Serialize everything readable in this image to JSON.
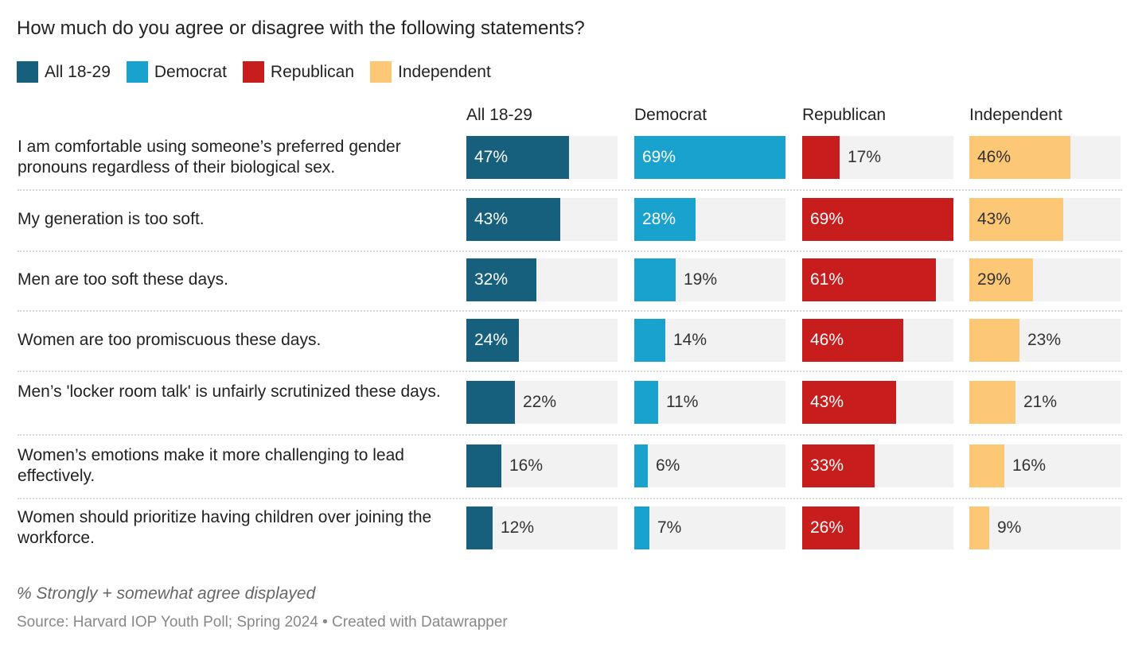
{
  "chart_data": {
    "type": "bar",
    "title": "How much do you agree or disagree with the following statements?",
    "legend": [
      {
        "name": "All 18-29",
        "color": "#17607d"
      },
      {
        "name": "Democrat",
        "color": "#1aa2cf"
      },
      {
        "name": "Republican",
        "color": "#c71e1d"
      },
      {
        "name": "Independent",
        "color": "#fdc875"
      }
    ],
    "categories": [
      "I am comfortable using someone’s preferred gender pronouns regardless of their biological sex.",
      "My generation is too soft.",
      "Men are too soft these days.",
      "Women are too promiscuous these days.",
      "Men’s 'locker room talk' is unfairly scrutinized these days.",
      "Women’s emotions make it more challenging to lead effectively.",
      "Women should prioritize having children over joining the workforce."
    ],
    "series": [
      {
        "name": "All 18-29",
        "values": [
          47,
          43,
          32,
          24,
          22,
          16,
          12
        ],
        "labels": [
          "47%",
          "43%",
          "32%",
          "24%",
          "22%",
          "16%",
          "12%"
        ]
      },
      {
        "name": "Democrat",
        "values": [
          69,
          28,
          19,
          14,
          11,
          6,
          7
        ],
        "labels": [
          "69%",
          "28%",
          "19%",
          "14%",
          "11%",
          "6%",
          "7%"
        ]
      },
      {
        "name": "Republican",
        "values": [
          17,
          69,
          61,
          46,
          43,
          33,
          26
        ],
        "labels": [
          "17%",
          "69%",
          "61%",
          "46%",
          "43%",
          "33%",
          "26%"
        ]
      },
      {
        "name": "Independent",
        "values": [
          46,
          43,
          29,
          23,
          21,
          16,
          9
        ],
        "labels": [
          "46%",
          "43%",
          "29%",
          "23%",
          "21%",
          "16%",
          "9%"
        ]
      }
    ],
    "xlim": [
      0,
      69
    ],
    "unit": "%",
    "note": "% Strongly + somewhat agree displayed",
    "source": "Source: Harvard IOP Youth Poll; Spring 2024 • Created with Datawrapper"
  }
}
